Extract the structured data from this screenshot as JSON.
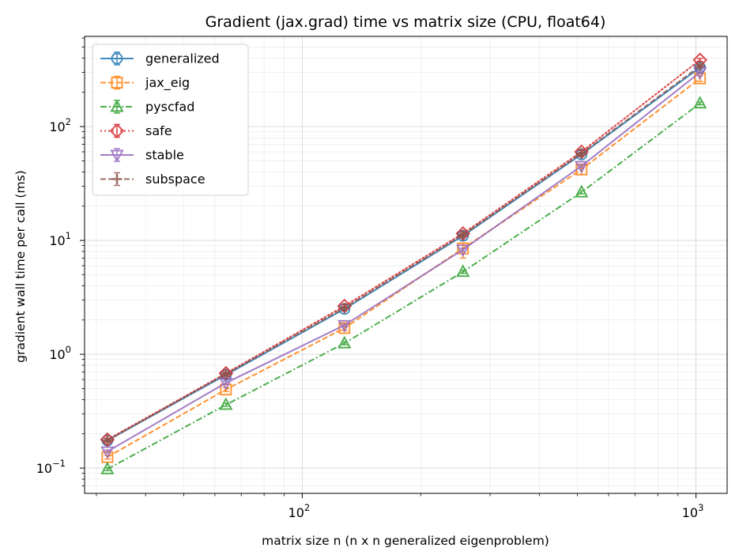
{
  "chart_data": {
    "type": "line",
    "title": "Gradient (jax.grad) time vs matrix size (CPU, float64)",
    "xlabel": "matrix size n (n x n generalized eigenproblem)",
    "ylabel": "gradient wall time per call (ms)",
    "xscale": "log",
    "yscale": "log",
    "xlim": [
      28,
      1200
    ],
    "ylim": [
      0.06,
      620
    ],
    "grid": true,
    "legend_position": "upper-left",
    "x": [
      32,
      64,
      128,
      256,
      512,
      1024
    ],
    "x_ticks": [
      {
        "value": 100,
        "base": "10",
        "exp": "2"
      },
      {
        "value": 1000,
        "base": "10",
        "exp": "3"
      }
    ],
    "y_ticks": [
      {
        "value": 0.1,
        "base": "10",
        "exp": "−1"
      },
      {
        "value": 1,
        "base": "10",
        "exp": "0"
      },
      {
        "value": 10,
        "base": "10",
        "exp": "1"
      },
      {
        "value": 100,
        "base": "10",
        "exp": "2"
      }
    ],
    "series": [
      {
        "name": "generalized",
        "color": "#1f77b4",
        "dash": "solid",
        "marker": "circle",
        "values": [
          0.175,
          0.66,
          2.5,
          11.0,
          57,
          330
        ]
      },
      {
        "name": "jax_eig",
        "color": "#ff7f0e",
        "dash": "dashed",
        "marker": "square",
        "values": [
          0.125,
          0.49,
          1.7,
          8.5,
          42,
          265
        ],
        "err_low": [
          0.12,
          0.47,
          1.62,
          7.0,
          38,
          250
        ],
        "err_high": [
          0.13,
          0.51,
          1.8,
          9.5,
          45,
          280
        ]
      },
      {
        "name": "pyscfad",
        "color": "#2ca02c",
        "dash": "dashdot",
        "marker": "triangle-up",
        "values": [
          0.098,
          0.36,
          1.25,
          5.3,
          26.5,
          160
        ]
      },
      {
        "name": "safe",
        "color": "#d62728",
        "dash": "dotted",
        "marker": "diamond",
        "values": [
          0.178,
          0.68,
          2.65,
          11.5,
          60,
          385
        ]
      },
      {
        "name": "stable",
        "color": "#9467bd",
        "dash": "solid",
        "marker": "triangle-down",
        "values": [
          0.14,
          0.56,
          1.8,
          8.3,
          45,
          300
        ]
      },
      {
        "name": "subspace",
        "color": "#8c564b",
        "dash": "dashed",
        "marker": "plus",
        "values": [
          0.175,
          0.67,
          2.55,
          11.2,
          58,
          340
        ]
      }
    ]
  }
}
